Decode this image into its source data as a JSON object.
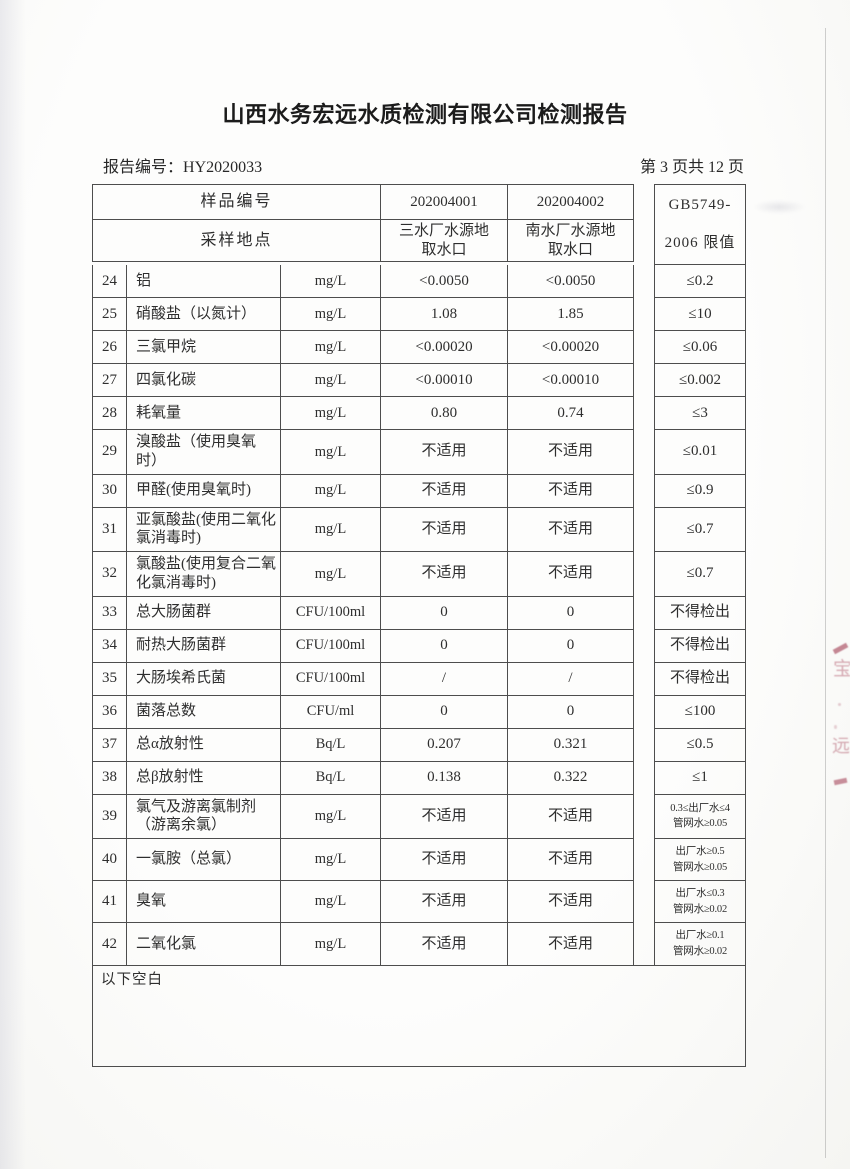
{
  "header": {
    "title": "山西水务宏远水质检测有限公司检测报告",
    "report_no_label": "报告编号：",
    "report_no": "HY2020033",
    "page_indicator": "第 3 页共 12 页"
  },
  "table": {
    "head": {
      "sample_no_label": "样品编号",
      "sampling_location_label": "采样地点",
      "sample1_no": "202004001",
      "sample2_no": "202004002",
      "sample1_location": "三水厂水源地\n取水口",
      "sample2_location": "南水厂水源地\n取水口",
      "limit_header": "GB5749-\n2006 限值"
    },
    "rows": [
      {
        "no": "24",
        "name": "铝",
        "unit": "mg/L",
        "v1": "<0.0050",
        "v2": "<0.0050",
        "limit": "≤0.2"
      },
      {
        "no": "25",
        "name": "硝酸盐（以氮计）",
        "unit": "mg/L",
        "v1": "1.08",
        "v2": "1.85",
        "limit": "≤10"
      },
      {
        "no": "26",
        "name": "三氯甲烷",
        "unit": "mg/L",
        "v1": "<0.00020",
        "v2": "<0.00020",
        "limit": "≤0.06"
      },
      {
        "no": "27",
        "name": "四氯化碳",
        "unit": "mg/L",
        "v1": "<0.00010",
        "v2": "<0.00010",
        "limit": "≤0.002"
      },
      {
        "no": "28",
        "name": "耗氧量",
        "unit": "mg/L",
        "v1": "0.80",
        "v2": "0.74",
        "limit": "≤3"
      },
      {
        "no": "29",
        "name": "溴酸盐（使用臭氧时）",
        "unit": "mg/L",
        "v1": "不适用",
        "v2": "不适用",
        "limit": "≤0.01"
      },
      {
        "no": "30",
        "name": "甲醛(使用臭氧时)",
        "unit": "mg/L",
        "v1": "不适用",
        "v2": "不适用",
        "limit": "≤0.9"
      },
      {
        "no": "31",
        "name": "亚氯酸盐(使用二氧化氯消毒时)",
        "unit": "mg/L",
        "v1": "不适用",
        "v2": "不适用",
        "limit": "≤0.7"
      },
      {
        "no": "32",
        "name": "氯酸盐(使用复合二氧化氯消毒时)",
        "unit": "mg/L",
        "v1": "不适用",
        "v2": "不适用",
        "limit": "≤0.7"
      },
      {
        "no": "33",
        "name": "总大肠菌群",
        "unit": "CFU/100ml",
        "v1": "0",
        "v2": "0",
        "limit": "不得检出"
      },
      {
        "no": "34",
        "name": "耐热大肠菌群",
        "unit": "CFU/100ml",
        "v1": "0",
        "v2": "0",
        "limit": "不得检出"
      },
      {
        "no": "35",
        "name": "大肠埃希氏菌",
        "unit": "CFU/100ml",
        "v1": "/",
        "v2": "/",
        "limit": "不得检出"
      },
      {
        "no": "36",
        "name": "菌落总数",
        "unit": "CFU/ml",
        "v1": "0",
        "v2": "0",
        "limit": "≤100"
      },
      {
        "no": "37",
        "name": "总α放射性",
        "unit": "Bq/L",
        "v1": "0.207",
        "v2": "0.321",
        "limit": "≤0.5"
      },
      {
        "no": "38",
        "name": "总β放射性",
        "unit": "Bq/L",
        "v1": "0.138",
        "v2": "0.322",
        "limit": "≤1"
      },
      {
        "no": "39",
        "name": "氯气及游离氯制剂（游离余氯）",
        "unit": "mg/L",
        "v1": "不适用",
        "v2": "不适用",
        "limit": "0.3≤出厂水≤4\n管网水≥0.05"
      },
      {
        "no": "40",
        "name": "一氯胺（总氯）",
        "unit": "mg/L",
        "v1": "不适用",
        "v2": "不适用",
        "limit": "出厂水≥0.5\n管网水≥0.05"
      },
      {
        "no": "41",
        "name": "臭氧",
        "unit": "mg/L",
        "v1": "不适用",
        "v2": "不适用",
        "limit": "出厂水≤0.3\n管网水≥0.02"
      },
      {
        "no": "42",
        "name": "二氧化氯",
        "unit": "mg/L",
        "v1": "不适用",
        "v2": "不适用",
        "limit": "出厂水≥0.1\n管网水≥0.02"
      }
    ],
    "footer_note": "以下空白"
  }
}
